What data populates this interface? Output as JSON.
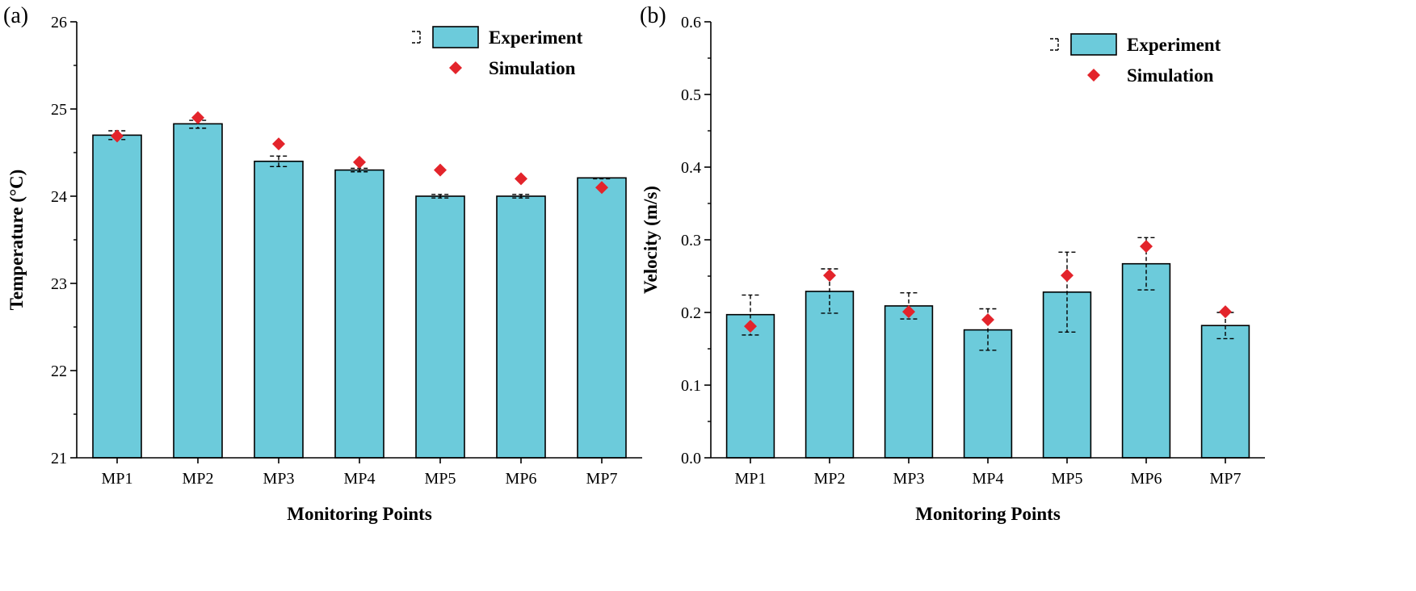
{
  "colors": {
    "bar": "#6ccbdb",
    "bar_edge": "#000000",
    "marker": "#e3242b",
    "axis": "#000000"
  },
  "chart_data": [
    {
      "panel_label": "(a)",
      "type": "bar",
      "categories": [
        "MP1",
        "MP2",
        "MP3",
        "MP4",
        "MP5",
        "MP6",
        "MP7"
      ],
      "series": [
        {
          "name": "Experiment",
          "kind": "bar",
          "values": [
            24.7,
            24.83,
            24.4,
            24.3,
            24.0,
            24.0,
            24.21
          ],
          "err_low": [
            24.65,
            24.78,
            24.34,
            24.28,
            23.98,
            23.98,
            24.2
          ],
          "err_high": [
            24.75,
            24.87,
            24.46,
            24.32,
            24.02,
            24.02,
            24.21
          ]
        },
        {
          "name": "Simulation",
          "kind": "scatter",
          "values": [
            24.69,
            24.9,
            24.6,
            24.39,
            24.3,
            24.2,
            24.1
          ]
        }
      ],
      "xlabel": "Monitoring Points",
      "ylabel": "Temperature (°C)",
      "ylim": [
        21,
        26
      ],
      "yticks": [
        "21",
        "22",
        "23",
        "24",
        "25",
        "26"
      ],
      "legend": {
        "position": "top-right",
        "entries": [
          "Experiment",
          "Simulation"
        ]
      },
      "grid": false
    },
    {
      "panel_label": "(b)",
      "type": "bar",
      "categories": [
        "MP1",
        "MP2",
        "MP3",
        "MP4",
        "MP5",
        "MP6",
        "MP7"
      ],
      "series": [
        {
          "name": "Experiment",
          "kind": "bar",
          "values": [
            0.197,
            0.229,
            0.209,
            0.176,
            0.228,
            0.267,
            0.182
          ],
          "err_low": [
            0.169,
            0.199,
            0.191,
            0.148,
            0.173,
            0.231,
            0.164
          ],
          "err_high": [
            0.224,
            0.26,
            0.227,
            0.205,
            0.283,
            0.303,
            0.2
          ]
        },
        {
          "name": "Simulation",
          "kind": "scatter",
          "values": [
            0.181,
            0.251,
            0.201,
            0.19,
            0.251,
            0.291,
            0.201
          ]
        }
      ],
      "xlabel": "Monitoring Points",
      "ylabel": "Velocity (m/s)",
      "ylim": [
        0.0,
        0.6
      ],
      "yticks": [
        "0.0",
        "0.1",
        "0.2",
        "0.3",
        "0.4",
        "0.5",
        "0.6"
      ],
      "legend": {
        "position": "top-right",
        "entries": [
          "Experiment",
          "Simulation"
        ]
      },
      "grid": false
    }
  ]
}
